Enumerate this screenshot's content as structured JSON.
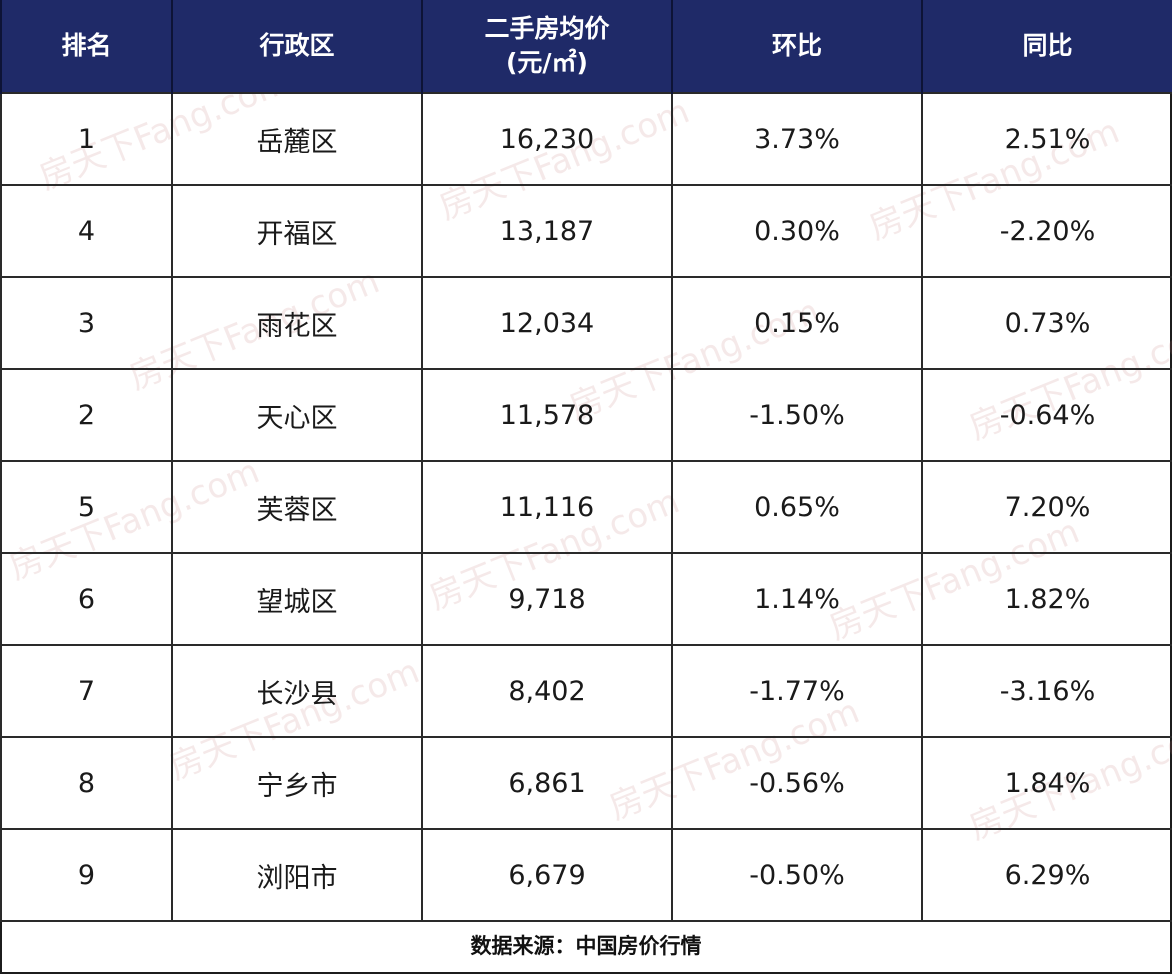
{
  "table": {
    "headers": {
      "rank": "排名",
      "district": "行政区",
      "price_line1": "二手房均价",
      "price_line2": "(元/㎡)",
      "mom": "环比",
      "yoy": "同比"
    },
    "rows": [
      {
        "rank": "1",
        "district": "岳麓区",
        "price": "16,230",
        "mom": "3.73%",
        "yoy": "2.51%"
      },
      {
        "rank": "4",
        "district": "开福区",
        "price": "13,187",
        "mom": "0.30%",
        "yoy": "-2.20%"
      },
      {
        "rank": "3",
        "district": "雨花区",
        "price": "12,034",
        "mom": "0.15%",
        "yoy": "0.73%"
      },
      {
        "rank": "2",
        "district": "天心区",
        "price": "11,578",
        "mom": "-1.50%",
        "yoy": "-0.64%"
      },
      {
        "rank": "5",
        "district": "芙蓉区",
        "price": "11,116",
        "mom": "0.65%",
        "yoy": "7.20%"
      },
      {
        "rank": "6",
        "district": "望城区",
        "price": "9,718",
        "mom": "1.14%",
        "yoy": "1.82%"
      },
      {
        "rank": "7",
        "district": "长沙县",
        "price": "8,402",
        "mom": "-1.77%",
        "yoy": "-3.16%"
      },
      {
        "rank": "8",
        "district": "宁乡市",
        "price": "6,861",
        "mom": "-0.56%",
        "yoy": "1.84%"
      },
      {
        "rank": "9",
        "district": "浏阳市",
        "price": "6,679",
        "mom": "-0.50%",
        "yoy": "6.29%"
      }
    ]
  },
  "source": "数据来源：中国房价行情",
  "watermark": {
    "text": "房天下Fang.com"
  },
  "colors": {
    "header_bg": "#1f2a68",
    "header_text": "#ffffff"
  }
}
